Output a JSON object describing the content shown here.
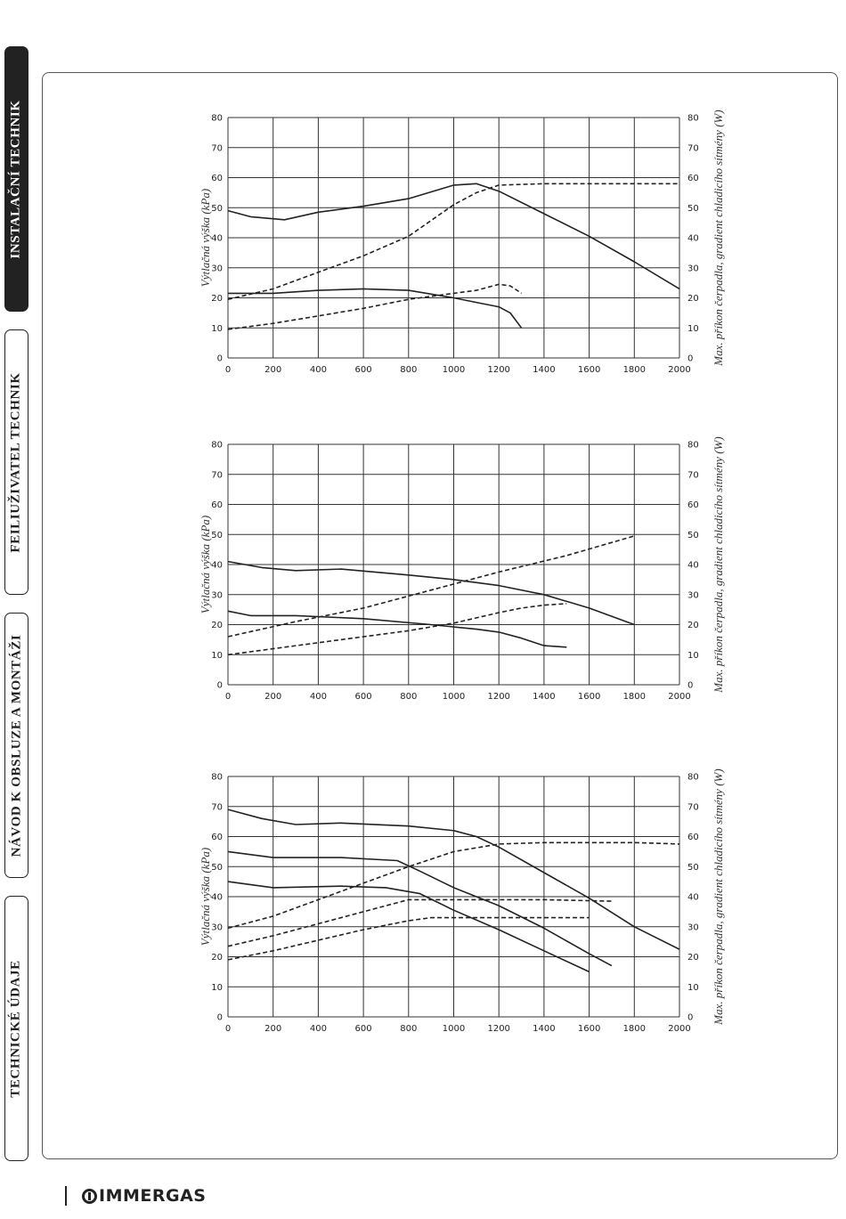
{
  "sidebar": {
    "tabs": [
      {
        "label": "INSTALAČNÍ TECHNIK",
        "active": true
      },
      {
        "label": "FEILIUŽIVATEL TECHNIK",
        "active": false
      },
      {
        "label": "NÁVOD K OBSLUZE A MONTÁŽI",
        "active": false
      },
      {
        "label": "TECHNICKÉ ÚDAJE",
        "active": false
      }
    ]
  },
  "colors": {
    "ink": "#222222",
    "frame": "#555555",
    "grid": "#333333"
  },
  "chart_data": [
    {
      "type": "line",
      "xlabel": "",
      "ylabel_left": "Výtlačná výška (kPa)",
      "ylabel_right": "Max. příkon čerpadla, gradient chladicího sítmény (W)",
      "xlim": [
        0,
        2000
      ],
      "ylim": [
        0,
        80
      ],
      "x_ticks": [
        0,
        200,
        400,
        600,
        800,
        1000,
        1200,
        1400,
        1600,
        1800,
        2000
      ],
      "y_ticks": [
        0,
        10,
        20,
        30,
        40,
        50,
        60,
        70,
        80
      ],
      "grid": true,
      "series": [
        {
          "style": "solid",
          "points": [
            [
              0,
              49
            ],
            [
              100,
              47
            ],
            [
              250,
              46
            ],
            [
              400,
              48.5
            ],
            [
              600,
              50.5
            ],
            [
              800,
              53
            ],
            [
              1000,
              57.5
            ],
            [
              1100,
              58
            ],
            [
              1200,
              55.5
            ],
            [
              1400,
              48
            ],
            [
              1600,
              40.5
            ],
            [
              1800,
              32
            ],
            [
              2000,
              23
            ]
          ]
        },
        {
          "style": "solid",
          "points": [
            [
              0,
              21.5
            ],
            [
              200,
              21.5
            ],
            [
              400,
              22.5
            ],
            [
              600,
              23
            ],
            [
              800,
              22.5
            ],
            [
              1000,
              20
            ],
            [
              1100,
              18.5
            ],
            [
              1200,
              17
            ],
            [
              1250,
              15
            ],
            [
              1300,
              10
            ]
          ]
        },
        {
          "style": "dashed",
          "points": [
            [
              0,
              19.5
            ],
            [
              200,
              23
            ],
            [
              400,
              28.5
            ],
            [
              600,
              34
            ],
            [
              800,
              40.5
            ],
            [
              1000,
              51
            ],
            [
              1100,
              55
            ],
            [
              1200,
              57.5
            ],
            [
              1400,
              58
            ],
            [
              1600,
              58
            ],
            [
              1800,
              58
            ],
            [
              2000,
              58
            ]
          ]
        },
        {
          "style": "dashed",
          "points": [
            [
              0,
              9.5
            ],
            [
              200,
              11.5
            ],
            [
              400,
              14
            ],
            [
              600,
              16.5
            ],
            [
              800,
              19.5
            ],
            [
              1000,
              21.5
            ],
            [
              1100,
              22.5
            ],
            [
              1200,
              24.5
            ],
            [
              1250,
              24
            ],
            [
              1300,
              21.5
            ]
          ]
        }
      ]
    },
    {
      "type": "line",
      "xlabel": "",
      "ylabel_left": "Výtlačná výška (kPa)",
      "ylabel_right": "Max. příkon čerpadla, gradient chladicího sítmény (W)",
      "xlim": [
        0,
        2000
      ],
      "ylim": [
        0,
        80
      ],
      "x_ticks": [
        0,
        200,
        400,
        600,
        800,
        1000,
        1200,
        1400,
        1600,
        1800,
        2000
      ],
      "y_ticks": [
        0,
        10,
        20,
        30,
        40,
        50,
        60,
        70,
        80
      ],
      "grid": true,
      "series": [
        {
          "style": "solid",
          "points": [
            [
              0,
              41
            ],
            [
              150,
              39
            ],
            [
              300,
              38
            ],
            [
              500,
              38.5
            ],
            [
              800,
              36.5
            ],
            [
              1000,
              35
            ],
            [
              1200,
              33
            ],
            [
              1400,
              30
            ],
            [
              1600,
              25.5
            ],
            [
              1800,
              20
            ]
          ]
        },
        {
          "style": "solid",
          "points": [
            [
              0,
              24.5
            ],
            [
              100,
              23
            ],
            [
              300,
              23
            ],
            [
              600,
              22
            ],
            [
              900,
              20
            ],
            [
              1100,
              18.5
            ],
            [
              1200,
              17.5
            ],
            [
              1300,
              15.5
            ],
            [
              1400,
              13
            ],
            [
              1500,
              12.5
            ]
          ]
        },
        {
          "style": "dashed",
          "points": [
            [
              0,
              16
            ],
            [
              300,
              21
            ],
            [
              600,
              25.5
            ],
            [
              900,
              31.5
            ],
            [
              1200,
              37.5
            ],
            [
              1500,
              43
            ],
            [
              1800,
              49.5
            ]
          ]
        },
        {
          "style": "dashed",
          "points": [
            [
              0,
              10
            ],
            [
              400,
              14
            ],
            [
              800,
              18
            ],
            [
              1000,
              20.5
            ],
            [
              1200,
              24
            ],
            [
              1300,
              25.5
            ],
            [
              1400,
              26.5
            ],
            [
              1500,
              27
            ]
          ]
        }
      ]
    },
    {
      "type": "line",
      "xlabel": "",
      "ylabel_left": "Výtlačná výška (kPa)",
      "ylabel_right": "Max. příkon čerpadla, gradient chladicího sítmény (W)",
      "xlim": [
        0,
        2000
      ],
      "ylim": [
        0,
        80
      ],
      "x_ticks": [
        0,
        200,
        400,
        600,
        800,
        1000,
        1200,
        1400,
        1600,
        1800,
        2000
      ],
      "y_ticks": [
        0,
        10,
        20,
        30,
        40,
        50,
        60,
        70,
        80
      ],
      "grid": true,
      "series": [
        {
          "style": "solid",
          "points": [
            [
              0,
              69
            ],
            [
              150,
              66
            ],
            [
              300,
              64
            ],
            [
              500,
              64.5
            ],
            [
              800,
              63.5
            ],
            [
              1000,
              62
            ],
            [
              1100,
              60
            ],
            [
              1200,
              56.5
            ],
            [
              1400,
              48
            ],
            [
              1600,
              39.5
            ],
            [
              1800,
              30
            ],
            [
              2000,
              22.5
            ]
          ]
        },
        {
          "style": "solid",
          "points": [
            [
              0,
              55
            ],
            [
              200,
              53
            ],
            [
              500,
              53
            ],
            [
              750,
              52
            ],
            [
              850,
              48.5
            ],
            [
              1000,
              43
            ],
            [
              1200,
              37
            ],
            [
              1400,
              29.5
            ],
            [
              1600,
              21
            ],
            [
              1700,
              17
            ]
          ]
        },
        {
          "style": "solid",
          "points": [
            [
              0,
              45
            ],
            [
              200,
              43
            ],
            [
              500,
              43.5
            ],
            [
              700,
              43
            ],
            [
              850,
              41
            ],
            [
              1000,
              35.5
            ],
            [
              1200,
              29
            ],
            [
              1400,
              22
            ],
            [
              1600,
              15
            ]
          ]
        },
        {
          "style": "dashed",
          "points": [
            [
              0,
              29.5
            ],
            [
              200,
              33.5
            ],
            [
              400,
              39
            ],
            [
              600,
              44.5
            ],
            [
              800,
              50
            ],
            [
              1000,
              55
            ],
            [
              1200,
              57.5
            ],
            [
              1400,
              58
            ],
            [
              1600,
              58
            ],
            [
              1800,
              58
            ],
            [
              2000,
              57.5
            ]
          ]
        },
        {
          "style": "dashed",
          "points": [
            [
              0,
              23.5
            ],
            [
              200,
              27
            ],
            [
              400,
              31
            ],
            [
              600,
              35
            ],
            [
              800,
              39
            ],
            [
              1000,
              39
            ],
            [
              1400,
              39
            ],
            [
              1700,
              38.5
            ]
          ]
        },
        {
          "style": "dashed",
          "points": [
            [
              0,
              19
            ],
            [
              200,
              22
            ],
            [
              400,
              25.5
            ],
            [
              600,
              29
            ],
            [
              800,
              32
            ],
            [
              900,
              33
            ],
            [
              1000,
              33
            ],
            [
              1300,
              33
            ],
            [
              1600,
              33
            ]
          ]
        }
      ]
    }
  ],
  "footer": {
    "brand": "IMMERGAS",
    "logo_icon": "immergas-logo-icon"
  }
}
